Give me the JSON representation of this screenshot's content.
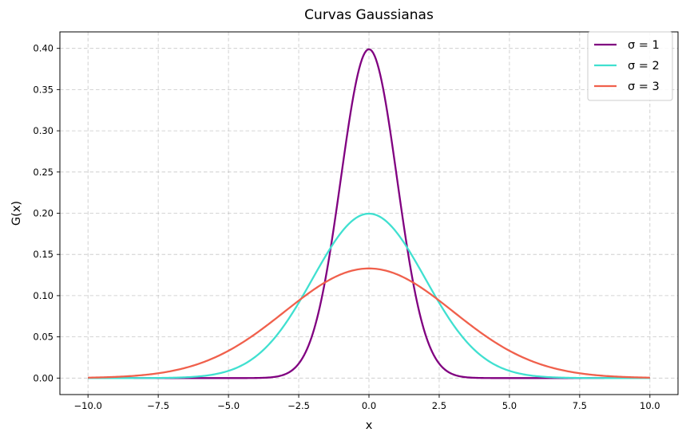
{
  "chart_data": {
    "type": "line",
    "title": "Curvas Gaussianas",
    "xlabel": "x",
    "ylabel": "G(x)",
    "xlim": [
      -11.0,
      11.0
    ],
    "ylim": [
      -0.02,
      0.42
    ],
    "xticks": [
      -10.0,
      -7.5,
      -5.0,
      -2.5,
      0.0,
      2.5,
      5.0,
      7.5,
      10.0
    ],
    "xtick_labels": [
      "−10.0",
      "−7.5",
      "−5.0",
      "−2.5",
      "0.0",
      "2.5",
      "5.0",
      "7.5",
      "10.0"
    ],
    "yticks": [
      0.0,
      0.05,
      0.1,
      0.15,
      0.2,
      0.25,
      0.3,
      0.35,
      0.4
    ],
    "ytick_labels": [
      "0.00",
      "0.05",
      "0.10",
      "0.15",
      "0.20",
      "0.25",
      "0.30",
      "0.35",
      "0.40"
    ],
    "grid": true,
    "legend_position": "top-right",
    "x_range": [
      -10,
      10
    ],
    "series": [
      {
        "name": "σ = 1",
        "sigma": 1,
        "peak": 0.399,
        "color": "#800080"
      },
      {
        "name": "σ = 2",
        "sigma": 2,
        "peak": 0.199,
        "color": "#40e0d0"
      },
      {
        "name": "σ = 3",
        "sigma": 3,
        "peak": 0.133,
        "color": "#f0604c"
      }
    ]
  }
}
